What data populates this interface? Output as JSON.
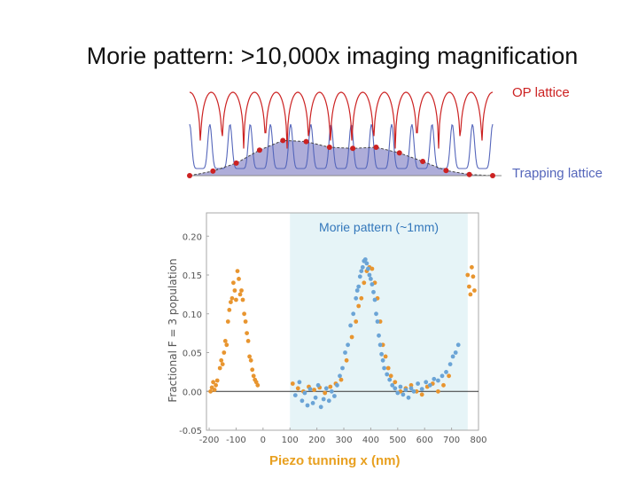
{
  "slide": {
    "title": "Morie pattern: >10,000x imaging magnification",
    "op_label": "OP lattice",
    "trap_label": "Trapping lattice"
  },
  "colors": {
    "op_lattice": "#cc2222",
    "trapping_lattice": "#5566bb",
    "envelope_fill": "#9a98d0",
    "series_orange": "#e8952f",
    "series_blue": "#6ba4d6",
    "highlight": "#e6f4f7",
    "inner_title": "#3377bb",
    "piezo_label": "#e8a020"
  },
  "chart_data": [
    {
      "type": "line",
      "id": "lattice-illustration",
      "series": [
        {
          "name": "OP lattice"
        },
        {
          "name": "Trapping lattice"
        }
      ],
      "envelope_points": [
        {
          "x": 0,
          "y": 0.0
        },
        {
          "x": 1,
          "y": 0.08
        },
        {
          "x": 2,
          "y": 0.22
        },
        {
          "x": 3,
          "y": 0.45
        },
        {
          "x": 4,
          "y": 0.62
        },
        {
          "x": 5,
          "y": 0.6
        },
        {
          "x": 6,
          "y": 0.5
        },
        {
          "x": 7,
          "y": 0.48
        },
        {
          "x": 8,
          "y": 0.5
        },
        {
          "x": 9,
          "y": 0.4
        },
        {
          "x": 10,
          "y": 0.25
        },
        {
          "x": 11,
          "y": 0.09
        },
        {
          "x": 12,
          "y": 0.02
        },
        {
          "x": 13,
          "y": 0.0
        }
      ],
      "op_periods": 14,
      "trap_periods": 15
    },
    {
      "type": "scatter",
      "id": "morie-scatter",
      "title": "Morie pattern (~1mm)",
      "xlabel": "Piezo tunning x (nm)",
      "ylabel": "Fractional F = 3 population",
      "xlim": [
        -210,
        800
      ],
      "ylim": [
        -0.05,
        0.23
      ],
      "xticks": [
        "-200",
        "-100",
        "0",
        "100",
        "200",
        "300",
        "400",
        "500",
        "600",
        "700",
        "800"
      ],
      "xtick_values": [
        -200,
        -100,
        0,
        100,
        200,
        300,
        400,
        500,
        600,
        700,
        800
      ],
      "yticks": [
        "0.20",
        "0.15",
        "0.10",
        "0.05",
        "0.00",
        "-0.05"
      ],
      "ytick_values": [
        0.2,
        0.15,
        0.1,
        0.05,
        0.0,
        -0.05
      ],
      "highlight_range": [
        100,
        760
      ],
      "zero_line": 0.0,
      "series": [
        {
          "color_key": "series_orange",
          "points": [
            [
              -195,
              0.0
            ],
            [
              -190,
              0.005
            ],
            [
              -185,
              0.012
            ],
            [
              -180,
              0.002
            ],
            [
              -175,
              0.008
            ],
            [
              -170,
              0.014
            ],
            [
              -160,
              0.03
            ],
            [
              -155,
              0.04
            ],
            [
              -150,
              0.035
            ],
            [
              -145,
              0.05
            ],
            [
              -140,
              0.065
            ],
            [
              -135,
              0.06
            ],
            [
              -130,
              0.09
            ],
            [
              -125,
              0.105
            ],
            [
              -120,
              0.115
            ],
            [
              -115,
              0.12
            ],
            [
              -110,
              0.14
            ],
            [
              -105,
              0.13
            ],
            [
              -100,
              0.118
            ],
            [
              -95,
              0.155
            ],
            [
              -90,
              0.145
            ],
            [
              -85,
              0.125
            ],
            [
              -80,
              0.13
            ],
            [
              -75,
              0.118
            ],
            [
              -70,
              0.1
            ],
            [
              -65,
              0.09
            ],
            [
              -60,
              0.075
            ],
            [
              -55,
              0.065
            ],
            [
              -50,
              0.045
            ],
            [
              -45,
              0.04
            ],
            [
              -40,
              0.028
            ],
            [
              -35,
              0.02
            ],
            [
              -30,
              0.015
            ],
            [
              -25,
              0.012
            ],
            [
              -20,
              0.008
            ],
            [
              110,
              0.01
            ],
            [
              130,
              0.004
            ],
            [
              150,
              0.0
            ],
            [
              170,
              0.006
            ],
            [
              190,
              0.002
            ],
            [
              210,
              0.005
            ],
            [
              230,
              -0.002
            ],
            [
              250,
              0.006
            ],
            [
              270,
              0.01
            ],
            [
              290,
              0.015
            ],
            [
              310,
              0.04
            ],
            [
              330,
              0.07
            ],
            [
              345,
              0.09
            ],
            [
              355,
              0.11
            ],
            [
              365,
              0.12
            ],
            [
              375,
              0.14
            ],
            [
              385,
              0.155
            ],
            [
              395,
              0.16
            ],
            [
              405,
              0.158
            ],
            [
              415,
              0.14
            ],
            [
              425,
              0.12
            ],
            [
              435,
              0.09
            ],
            [
              445,
              0.06
            ],
            [
              455,
              0.045
            ],
            [
              465,
              0.03
            ],
            [
              475,
              0.02
            ],
            [
              490,
              0.012
            ],
            [
              510,
              0.0
            ],
            [
              530,
              0.004
            ],
            [
              550,
              0.008
            ],
            [
              570,
              0.0
            ],
            [
              590,
              -0.004
            ],
            [
              610,
              0.006
            ],
            [
              630,
              0.01
            ],
            [
              650,
              0.0
            ],
            [
              670,
              0.008
            ],
            [
              690,
              0.02
            ],
            [
              760,
              0.15
            ],
            [
              765,
              0.135
            ],
            [
              770,
              0.125
            ],
            [
              775,
              0.16
            ],
            [
              780,
              0.148
            ],
            [
              785,
              0.13
            ]
          ]
        },
        {
          "color_key": "series_blue",
          "points": [
            [
              120,
              -0.005
            ],
            [
              135,
              0.012
            ],
            [
              145,
              -0.012
            ],
            [
              155,
              -0.002
            ],
            [
              165,
              -0.018
            ],
            [
              175,
              0.003
            ],
            [
              185,
              -0.015
            ],
            [
              195,
              -0.008
            ],
            [
              205,
              0.008
            ],
            [
              215,
              -0.02
            ],
            [
              225,
              -0.01
            ],
            [
              235,
              0.004
            ],
            [
              245,
              -0.012
            ],
            [
              255,
              0.0
            ],
            [
              265,
              -0.006
            ],
            [
              275,
              0.008
            ],
            [
              285,
              0.02
            ],
            [
              295,
              0.03
            ],
            [
              305,
              0.05
            ],
            [
              315,
              0.06
            ],
            [
              325,
              0.085
            ],
            [
              335,
              0.1
            ],
            [
              345,
              0.12
            ],
            [
              350,
              0.13
            ],
            [
              355,
              0.135
            ],
            [
              360,
              0.148
            ],
            [
              365,
              0.155
            ],
            [
              370,
              0.16
            ],
            [
              375,
              0.168
            ],
            [
              380,
              0.17
            ],
            [
              385,
              0.165
            ],
            [
              390,
              0.158
            ],
            [
              395,
              0.15
            ],
            [
              400,
              0.145
            ],
            [
              405,
              0.138
            ],
            [
              410,
              0.128
            ],
            [
              415,
              0.118
            ],
            [
              420,
              0.1
            ],
            [
              425,
              0.09
            ],
            [
              430,
              0.072
            ],
            [
              435,
              0.06
            ],
            [
              440,
              0.048
            ],
            [
              445,
              0.04
            ],
            [
              450,
              0.03
            ],
            [
              460,
              0.022
            ],
            [
              470,
              0.015
            ],
            [
              480,
              0.008
            ],
            [
              490,
              0.004
            ],
            [
              500,
              -0.002
            ],
            [
              510,
              0.006
            ],
            [
              520,
              -0.004
            ],
            [
              530,
              0.002
            ],
            [
              540,
              -0.008
            ],
            [
              550,
              0.004
            ],
            [
              560,
              0.0
            ],
            [
              575,
              0.01
            ],
            [
              590,
              0.003
            ],
            [
              605,
              0.012
            ],
            [
              620,
              0.008
            ],
            [
              635,
              0.016
            ],
            [
              650,
              0.014
            ],
            [
              665,
              0.02
            ],
            [
              680,
              0.025
            ],
            [
              695,
              0.035
            ],
            [
              705,
              0.045
            ],
            [
              715,
              0.05
            ],
            [
              725,
              0.06
            ]
          ]
        }
      ]
    }
  ]
}
